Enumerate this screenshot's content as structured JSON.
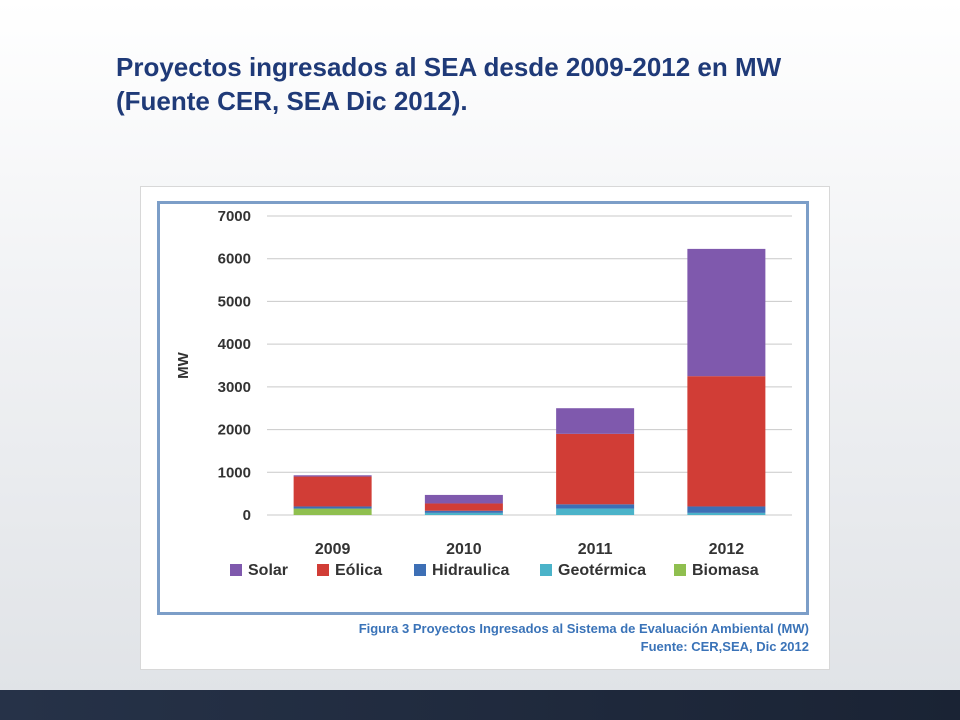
{
  "slide": {
    "title": "Proyectos ingresados al SEA desde 2009-2012 en MW (Fuente CER, SEA Dic 2012)."
  },
  "figure": {
    "caption_line1": "Figura 3  Proyectos Ingresados al Sistema de Evaluación Ambiental (MW)",
    "caption_line2": "Fuente: CER,SEA, Dic 2012"
  },
  "chart_data": {
    "type": "bar",
    "stacked": true,
    "categories": [
      "2009",
      "2010",
      "2011",
      "2012"
    ],
    "ylabel": "MW",
    "ylim": [
      0,
      7000
    ],
    "yticks": [
      0,
      1000,
      2000,
      3000,
      4000,
      5000,
      6000,
      7000
    ],
    "grid": true,
    "legend_position": "bottom",
    "series": [
      {
        "name": "Biomasa",
        "color": "#8fbf4f",
        "values": [
          150,
          0,
          0,
          0
        ]
      },
      {
        "name": "Geotérmica",
        "color": "#4bb3c9",
        "values": [
          0,
          50,
          150,
          50
        ]
      },
      {
        "name": "Hidraulica",
        "color": "#3d6fb5",
        "values": [
          50,
          50,
          100,
          150
        ]
      },
      {
        "name": "Eólica",
        "color": "#d13d36",
        "values": [
          700,
          170,
          1650,
          3050
        ]
      },
      {
        "name": "Solar",
        "color": "#7f59ad",
        "values": [
          30,
          200,
          600,
          2980
        ]
      }
    ],
    "legend_order": [
      "Solar",
      "Eólica",
      "Hidraulica",
      "Geotérmica",
      "Biomasa"
    ]
  }
}
